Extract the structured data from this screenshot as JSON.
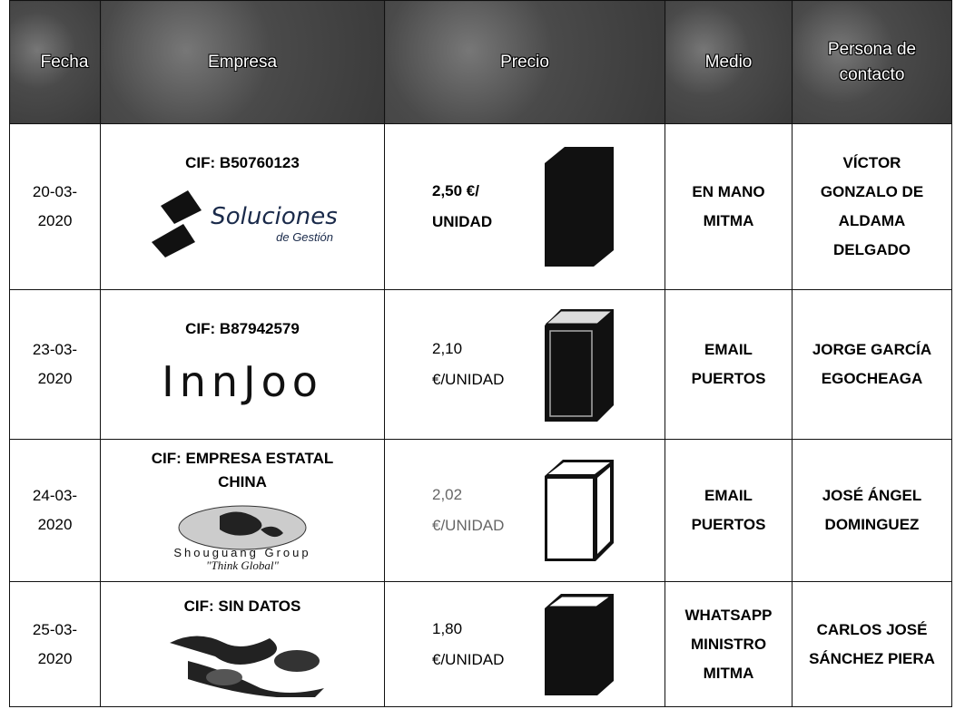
{
  "table": {
    "header": [
      "Fecha",
      "Empresa",
      "Precio",
      "Medio",
      "Persona de contacto"
    ],
    "rows": [
      {
        "fecha": "20-03-2020",
        "cif": "CIF: B50760123",
        "logo": [
          "Soluciones",
          "de Gestión"
        ],
        "precio": "2,50 €/ UNIDAD",
        "medio": "EN MANO MITMA",
        "persona": "VÍCTOR GONZALO DE ALDAMA DELGADO"
      },
      {
        "fecha": "23-03-2020",
        "cif": "CIF: B87942579",
        "logo": [
          "InnJoo"
        ],
        "precio": "2,10 €/UNIDAD",
        "medio": "EMAIL PUERTOS",
        "persona": "JORGE GARCÍA EGOCHEAGA"
      },
      {
        "fecha": "24-03-2020",
        "cif": "CIF: EMPRESA ESTATAL CHINA",
        "logo": [
          "Shouguang Group",
          "\"Think Global\""
        ],
        "precio": "2,02 €/UNIDAD",
        "medio": "EMAIL PUERTOS",
        "persona": "JOSÉ ÁNGEL DOMINGUEZ"
      },
      {
        "fecha": "25-03-2020",
        "cif": "CIF: SIN DATOS",
        "logo": [],
        "precio": "1,80 €/UNIDAD",
        "medio": "WHATSAPP MINISTRO MITMA",
        "persona": "CARLOS JOSÉ SÁNCHEZ PIERA"
      }
    ]
  }
}
